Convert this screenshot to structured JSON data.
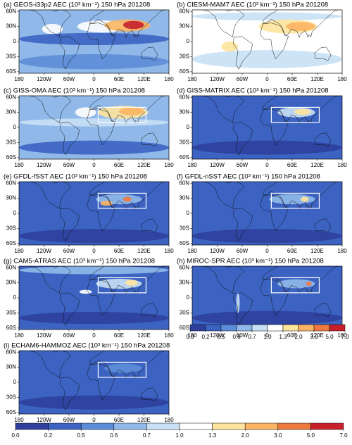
{
  "figure": {
    "panels": [
      {
        "title": "(a) GEOS-i33p2 AEC (10³ km⁻¹) 150 hPa 201208"
      },
      {
        "title": "(b) CIESM-MAM7 AEC (10³ km⁻¹) 150 hPa 201208"
      },
      {
        "title": "(c) GISS-OMA AEC (10³ km⁻¹) 150 hPa 201208"
      },
      {
        "title": "(d) GISS-MATRIX AEC (10³ km⁻¹) 150 hPa 201208"
      },
      {
        "title": "(e) GFDL-fSST AEC (10³ km⁻¹) 150 hPa 201208"
      },
      {
        "title": "(f) GFDL-nSST AEC (10³ km⁻¹) 150 hPa 201208"
      },
      {
        "title": "(g) CAM5-ATRAS AEC (10³ km⁻¹) 150 hPa 201208"
      },
      {
        "title": "(h) MIROC-SPR AEC (10³ km⁻¹) 150 hPa 201208"
      },
      {
        "title": "(i) ECHAM6-HAMMOZ AEC (10³ km⁻¹) 150 hPa 201208"
      }
    ],
    "map": {
      "xlim": [
        -180,
        180
      ],
      "ylim": [
        -63,
        63
      ],
      "xticks": [
        {
          "value": -180,
          "label": "180"
        },
        {
          "value": -120,
          "label": "120W"
        },
        {
          "value": -60,
          "label": "60W"
        },
        0,
        {
          "value": 60,
          "label": "60E"
        },
        {
          "value": 120,
          "label": "120E"
        },
        {
          "value": 180,
          "label": "180"
        }
      ],
      "yticks": [
        {
          "value": 60,
          "label": "60N"
        },
        {
          "value": 30,
          "label": "30N"
        },
        0,
        {
          "value": -30,
          "label": "30S"
        },
        {
          "value": -60,
          "label": "60S"
        }
      ]
    },
    "colorbar": {
      "levels": [
        {
          "value": 0,
          "label": "0.0"
        },
        0.2,
        0.5,
        0.6,
        0.7,
        {
          "value": 1,
          "label": "1.0"
        },
        1.3,
        {
          "value": 2,
          "label": "2.0"
        },
        {
          "value": 3,
          "label": "3.0"
        },
        {
          "value": 5,
          "label": "5.0"
        },
        {
          "value": 7,
          "label": "7.0"
        }
      ],
      "colors": [
        "#2e3f9c",
        "#3c63c2",
        "#5d8dd8",
        "#90b9e9",
        "#c8e0f5",
        "#ffffff",
        "#fde49c",
        "#fbb463",
        "#ef7a3f",
        "#c8202b"
      ]
    }
  }
}
